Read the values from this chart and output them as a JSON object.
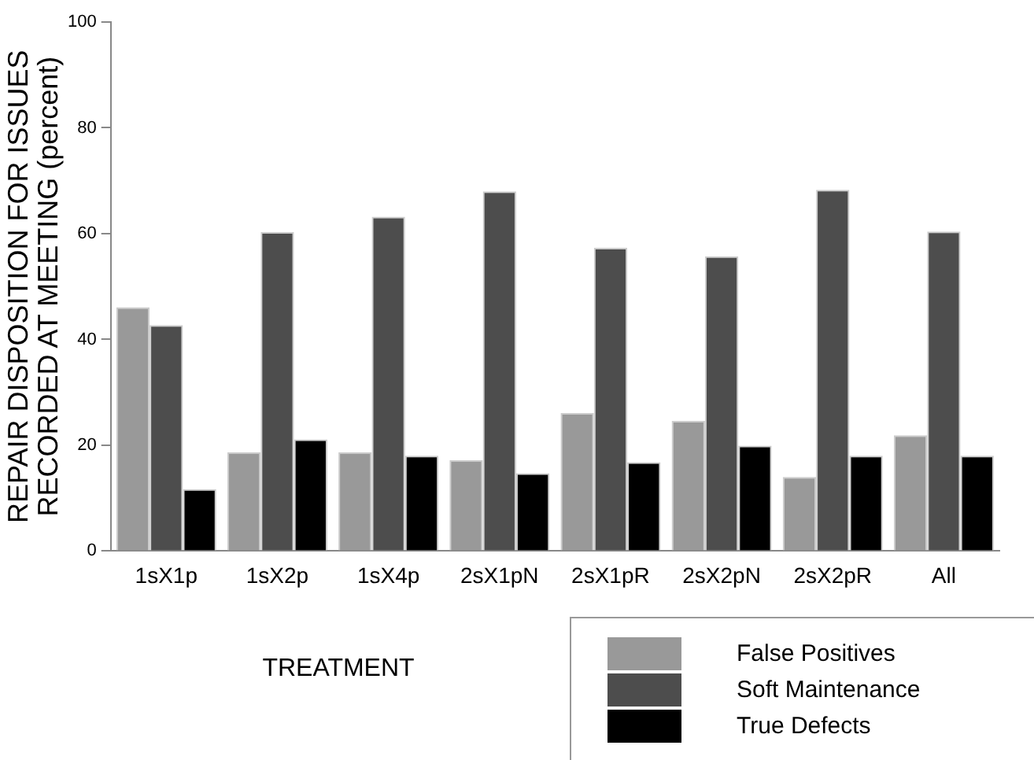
{
  "chart_data": {
    "type": "bar",
    "xlabel": "TREATMENT",
    "ylabel": "REPAIR DISPOSITION FOR ISSUES\nRECORDED AT MEETING (percent)",
    "categories": [
      "1sX1p",
      "1sX2p",
      "1sX4p",
      "2sX1pN",
      "2sX1pR",
      "2sX2pN",
      "2sX2pR",
      "All"
    ],
    "series": [
      {
        "name": "False Positives",
        "color": "#999999",
        "values": [
          46.1,
          18.7,
          18.7,
          17.2,
          26.1,
          24.6,
          14.0,
          21.9
        ]
      },
      {
        "name": "Soft Maintenance",
        "color": "#4d4d4d",
        "values": [
          42.7,
          60.3,
          63.2,
          68.0,
          57.3,
          55.7,
          68.3,
          60.4
        ]
      },
      {
        "name": "True Defects",
        "color": "#000000",
        "values": [
          11.7,
          21.1,
          18.0,
          14.7,
          16.8,
          19.9,
          18.0,
          18.0
        ]
      }
    ],
    "ylim": [
      0,
      100
    ],
    "yticks": [
      0,
      20,
      40,
      60,
      80,
      100
    ],
    "grid": false,
    "legend": "bottom right"
  }
}
